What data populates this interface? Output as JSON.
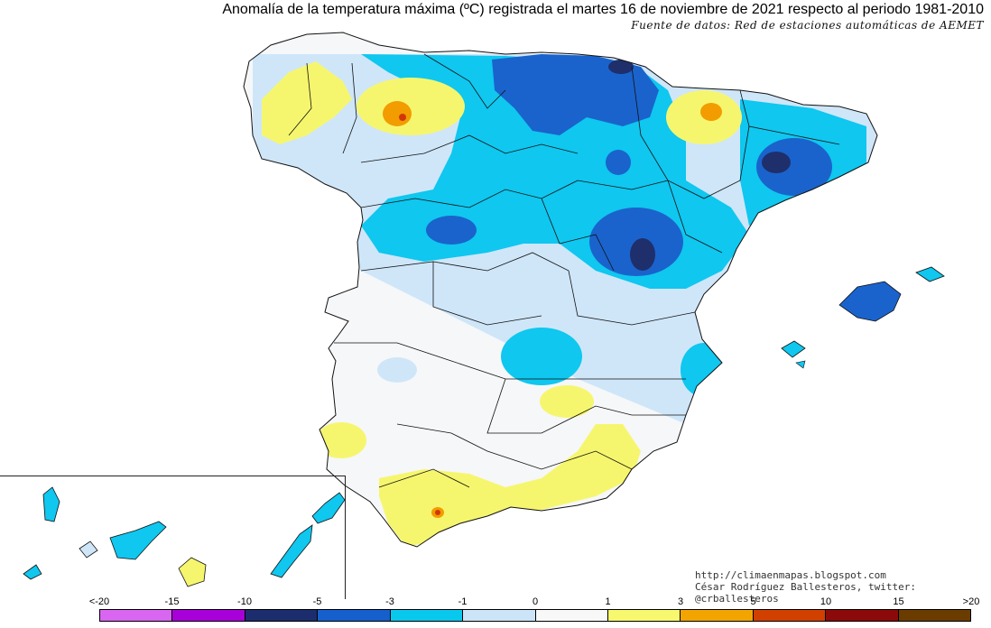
{
  "header": {
    "title": "Anomalía de la temperatura máxima (ºC) registrada el martes 16 de noviembre de 2021 respecto al periodo 1981-2010",
    "source": "Fuente de datos: Red de estaciones automáticas de AEMET"
  },
  "credits": {
    "url": "http://climaenmapas.blogspot.com",
    "author": "César Rodríguez Ballesteros, twitter: @crballesteros"
  },
  "legend": {
    "labels": [
      "<-20",
      "-15",
      "-10",
      "-5",
      "-3",
      "-1",
      "0",
      "1",
      "3",
      "5",
      "10",
      "15",
      ">20"
    ],
    "colors": [
      "#d966f0",
      "#a800d8",
      "#1c2d6e",
      "#1560cc",
      "#09c8ee",
      "#cce4f8",
      "#f8f8f8",
      "#f8f86e",
      "#f2a500",
      "#d24000",
      "#8c0a0a",
      "#6b3c00"
    ]
  },
  "map": {
    "colors": {
      "neutral": "#f6f7f9",
      "light_blue": "#cfe6f9",
      "cyan": "#0fc7ef",
      "blue": "#1a63cc",
      "dark_blue": "#1e2f6c",
      "yellow": "#f6f66e",
      "orange": "#f29c00",
      "red": "#d0360a",
      "border": "#111111"
    }
  }
}
